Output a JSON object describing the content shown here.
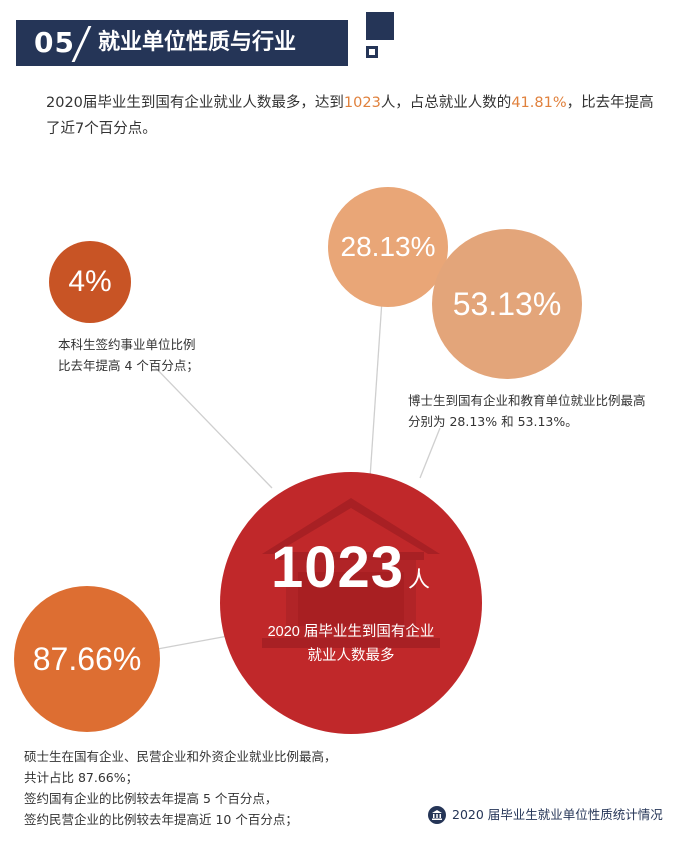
{
  "header": {
    "number": "05",
    "title": "就业单位性质与行业"
  },
  "intro": {
    "part1": "2020届毕业生到国有企业就业人数最多，达到",
    "hl1": "1023",
    "part2": "人，占总就业人数的",
    "hl2": "41.81%",
    "part3": "，比去年提高了近7个百分点。"
  },
  "bubbles": {
    "undergrad": {
      "value": "4%",
      "note_lines": [
        "本科生签约事业单位比例",
        "比去年提高 4 个百分点；"
      ]
    },
    "phd_soe": {
      "value": "28.13%"
    },
    "phd_edu": {
      "value": "53.13%",
      "note_lines": [
        "博士生到国有企业和教育单位就业比例最高",
        "分别为 28.13% 和 53.13%。"
      ]
    },
    "master": {
      "value": "87.66%",
      "note_lines": [
        "硕士生在国有企业、民营企业和外资企业就业比例最高，",
        "共计占比 87.66%；",
        "签约国有企业的比例较去年提高 5 个百分点，",
        "签约民营企业的比例较去年提高近 10 个百分点；"
      ]
    },
    "main": {
      "value": "1023",
      "unit": "人",
      "caption_lines": [
        "2020 届毕业生到国有企业",
        "就业人数最多"
      ]
    }
  },
  "footer": {
    "text": "2020 届毕业生就业单位性质统计情况"
  },
  "colors": {
    "navy": "#253557",
    "main_red": "#c0282a",
    "accent_orange": "#e0813d",
    "bubble_4": "#c85425",
    "bubble_28": "#e9a677",
    "bubble_53": "#e3a57a",
    "bubble_87": "#dd6e32"
  }
}
